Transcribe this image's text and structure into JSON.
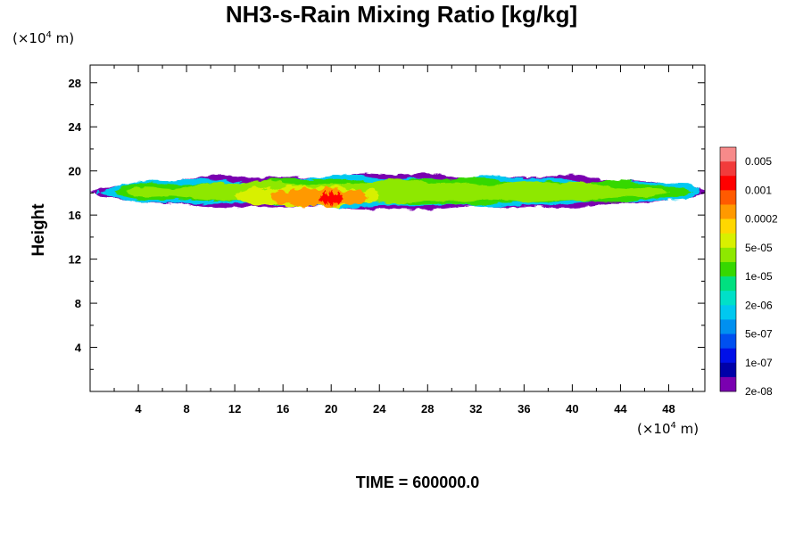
{
  "title": "NH3-s-Rain Mixing Ratio [kg/kg]",
  "time_label": "TIME = 600000.0",
  "y_unit": {
    "prefix": "(×10",
    "exp": "4",
    "suffix": " m)"
  },
  "x_unit": {
    "prefix": "(×10",
    "exp": "4",
    "suffix": " m)"
  },
  "chart_data": {
    "type": "heatmap",
    "title": "NH3-s-Rain Mixing Ratio [kg/kg]",
    "xlabel": "",
    "ylabel": "Height",
    "x_unit": "×10^4 m",
    "y_unit": "×10^4 m",
    "xlim": [
      0,
      51
    ],
    "ylim": [
      0,
      29.6
    ],
    "xticks": [
      4,
      8,
      12,
      16,
      20,
      24,
      28,
      32,
      36,
      40,
      44,
      48
    ],
    "yticks": [
      4,
      8,
      12,
      16,
      20,
      24,
      28
    ],
    "colorbar": {
      "labels": [
        "0.005",
        "0.001",
        "0.0002",
        "5e-05",
        "1e-05",
        "2e-06",
        "5e-07",
        "1e-07",
        "2e-08"
      ],
      "colors": [
        "#f78a8a",
        "#f23b3b",
        "#ff0000",
        "#ff5a00",
        "#ff9900",
        "#ffd700",
        "#d8f000",
        "#8ee800",
        "#36d800",
        "#00e080",
        "#00e0c8",
        "#00c8f0",
        "#0090f0",
        "#0050f0",
        "#0010e8",
        "#0000a8",
        "#7a00b0"
      ]
    },
    "field": {
      "description_layers": [
        {
          "level": 0,
          "x_range": [
            0,
            51
          ],
          "y_range": [
            16.6,
            19.6
          ]
        },
        {
          "level": 5,
          "x_range": [
            0.5,
            50.5
          ],
          "y_range": [
            16.8,
            19.4
          ]
        },
        {
          "level": 8,
          "x_range": [
            2,
            50
          ],
          "y_range": [
            17.0,
            19.2
          ]
        },
        {
          "level": 9,
          "x_range": [
            3,
            48
          ],
          "y_range": [
            17.2,
            19.0
          ]
        },
        {
          "level": 10,
          "x_range": [
            12,
            24
          ],
          "y_range": [
            16.8,
            18.6
          ]
        },
        {
          "level": 12,
          "x_range": [
            15,
            23
          ],
          "y_range": [
            16.8,
            18.4
          ]
        },
        {
          "level": 14,
          "x_range": [
            19,
            21
          ],
          "y_range": [
            17.0,
            18.0
          ]
        }
      ]
    },
    "grid": false,
    "legend": "right"
  }
}
